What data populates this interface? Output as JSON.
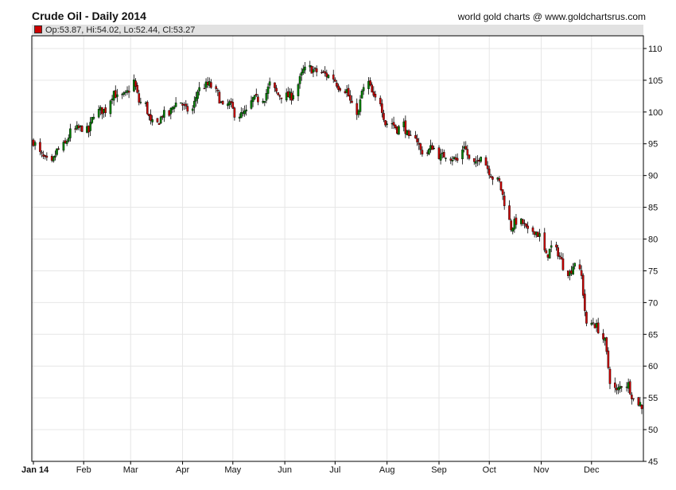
{
  "header": {
    "title": "Crude Oil - Daily 2014",
    "credit": "world gold charts @ www.goldchartsrus.com",
    "ohlc_readout": "Op:53.87, Hi:54.02, Lo:52.44, Cl:53.27"
  },
  "colors": {
    "up": "#008000",
    "down": "#cc0000",
    "wick": "#000000",
    "grid": "#e6e6e6"
  },
  "chart_data": {
    "type": "candlestick",
    "title": "Crude Oil - Daily 2014",
    "ylim": [
      45,
      112
    ],
    "yticks": [
      45,
      50,
      55,
      60,
      65,
      70,
      75,
      80,
      85,
      90,
      95,
      100,
      105,
      110
    ],
    "xlim": [
      "2014-01-02",
      "2014-12-31"
    ],
    "xticks": [
      {
        "label": "Jan 14",
        "date": "2014-01-02"
      },
      {
        "label": "Feb",
        "date": "2014-02-01"
      },
      {
        "label": "Mar",
        "date": "2014-03-01"
      },
      {
        "label": "Apr",
        "date": "2014-04-01"
      },
      {
        "label": "May",
        "date": "2014-05-01"
      },
      {
        "label": "Jun",
        "date": "2014-06-01"
      },
      {
        "label": "Jul",
        "date": "2014-07-01"
      },
      {
        "label": "Aug",
        "date": "2014-08-01"
      },
      {
        "label": "Sep",
        "date": "2014-09-01"
      },
      {
        "label": "Oct",
        "date": "2014-10-01"
      },
      {
        "label": "Nov",
        "date": "2014-11-01"
      },
      {
        "label": "Dec",
        "date": "2014-12-01"
      }
    ],
    "grid": true,
    "close_series": [
      [
        "2014-01-02",
        95.4
      ],
      [
        "2014-01-06",
        93.4
      ],
      [
        "2014-01-09",
        92.4
      ],
      [
        "2014-01-13",
        91.8
      ],
      [
        "2014-01-16",
        93.9
      ],
      [
        "2014-01-21",
        94.9
      ],
      [
        "2014-01-24",
        96.8
      ],
      [
        "2014-01-28",
        97.3
      ],
      [
        "2014-01-31",
        97.5
      ],
      [
        "2014-02-04",
        96.9
      ],
      [
        "2014-02-07",
        99.8
      ],
      [
        "2014-02-11",
        100.2
      ],
      [
        "2014-02-14",
        100.3
      ],
      [
        "2014-02-19",
        103.3
      ],
      [
        "2014-02-21",
        102.2
      ],
      [
        "2014-02-26",
        102.6
      ],
      [
        "2014-03-03",
        104.9
      ],
      [
        "2014-03-06",
        101.6
      ],
      [
        "2014-03-10",
        101.1
      ],
      [
        "2014-03-13",
        98.2
      ],
      [
        "2014-03-17",
        98.1
      ],
      [
        "2014-03-20",
        99.6
      ],
      [
        "2014-03-24",
        99.6
      ],
      [
        "2014-03-27",
        101.3
      ],
      [
        "2014-03-31",
        101.6
      ],
      [
        "2014-04-03",
        100.3
      ],
      [
        "2014-04-07",
        100.4
      ],
      [
        "2014-04-10",
        103.4
      ],
      [
        "2014-04-14",
        104.1
      ],
      [
        "2014-04-17",
        104.3
      ],
      [
        "2014-04-22",
        102.8
      ],
      [
        "2014-04-25",
        100.6
      ],
      [
        "2014-04-29",
        101.3
      ],
      [
        "2014-05-02",
        99.8
      ],
      [
        "2014-05-06",
        99.5
      ],
      [
        "2014-05-09",
        99.9
      ],
      [
        "2014-05-13",
        102.0
      ],
      [
        "2014-05-16",
        102.0
      ],
      [
        "2014-05-20",
        102.3
      ],
      [
        "2014-05-23",
        104.4
      ],
      [
        "2014-05-28",
        102.7
      ],
      [
        "2014-06-02",
        102.5
      ],
      [
        "2014-06-05",
        102.5
      ],
      [
        "2014-06-09",
        104.4
      ],
      [
        "2014-06-12",
        106.5
      ],
      [
        "2014-06-16",
        106.9
      ],
      [
        "2014-06-19",
        106.4
      ],
      [
        "2014-06-23",
        106.2
      ],
      [
        "2014-06-26",
        105.8
      ],
      [
        "2014-06-30",
        105.4
      ],
      [
        "2014-07-03",
        104.1
      ],
      [
        "2014-07-08",
        103.4
      ],
      [
        "2014-07-11",
        100.8
      ],
      [
        "2014-07-15",
        99.9
      ],
      [
        "2014-07-17",
        103.2
      ],
      [
        "2014-07-21",
        104.6
      ],
      [
        "2014-07-24",
        102.1
      ],
      [
        "2014-07-28",
        101.7
      ],
      [
        "2014-07-31",
        98.2
      ],
      [
        "2014-08-04",
        98.3
      ],
      [
        "2014-08-07",
        97.3
      ],
      [
        "2014-08-11",
        98.1
      ],
      [
        "2014-08-14",
        95.6
      ],
      [
        "2014-08-18",
        96.4
      ],
      [
        "2014-08-21",
        93.9
      ],
      [
        "2014-08-25",
        93.6
      ],
      [
        "2014-08-28",
        94.6
      ],
      [
        "2014-09-02",
        92.9
      ],
      [
        "2014-09-05",
        93.3
      ],
      [
        "2014-09-09",
        92.8
      ],
      [
        "2014-09-12",
        92.3
      ],
      [
        "2014-09-16",
        94.9
      ],
      [
        "2014-09-19",
        92.4
      ],
      [
        "2014-09-23",
        91.6
      ],
      [
        "2014-09-26",
        93.5
      ],
      [
        "2014-09-30",
        91.2
      ],
      [
        "2014-10-03",
        89.7
      ],
      [
        "2014-10-07",
        88.9
      ],
      [
        "2014-10-10",
        85.8
      ],
      [
        "2014-10-14",
        81.8
      ],
      [
        "2014-10-17",
        82.8
      ],
      [
        "2014-10-21",
        82.5
      ],
      [
        "2014-10-24",
        81.0
      ],
      [
        "2014-10-28",
        81.4
      ],
      [
        "2014-10-31",
        80.5
      ],
      [
        "2014-11-04",
        77.2
      ],
      [
        "2014-11-07",
        78.7
      ],
      [
        "2014-11-11",
        77.9
      ],
      [
        "2014-11-14",
        75.8
      ],
      [
        "2014-11-18",
        74.6
      ],
      [
        "2014-11-21",
        76.5
      ],
      [
        "2014-11-25",
        74.1
      ],
      [
        "2014-11-28",
        66.2
      ],
      [
        "2014-12-02",
        66.9
      ],
      [
        "2014-12-05",
        65.8
      ],
      [
        "2014-12-09",
        63.8
      ],
      [
        "2014-12-12",
        57.8
      ],
      [
        "2014-12-16",
        55.9
      ],
      [
        "2014-12-19",
        57.1
      ],
      [
        "2014-12-23",
        57.1
      ],
      [
        "2014-12-26",
        54.7
      ],
      [
        "2014-12-30",
        54.1
      ],
      [
        "2014-12-31",
        53.3
      ]
    ],
    "last_bar": {
      "date": "2014-12-31",
      "open": 53.87,
      "high": 54.02,
      "low": 52.44,
      "close": 53.27
    }
  }
}
